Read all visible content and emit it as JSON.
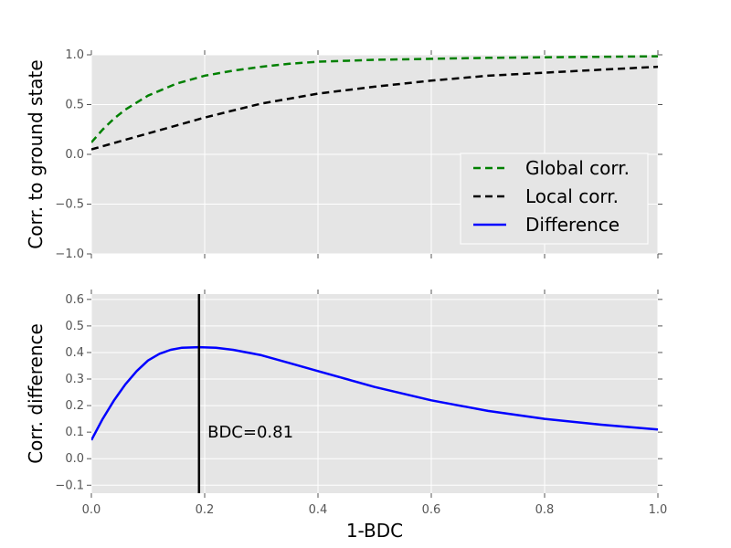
{
  "chart_data": [
    {
      "type": "line",
      "ylabel": "Corr. to ground state",
      "xlim": [
        0,
        1
      ],
      "ylim": [
        -1,
        1
      ],
      "xticks": [
        "",
        "",
        "",
        "",
        "",
        ""
      ],
      "yticks": [
        "−1.0",
        "−0.5",
        "0.0",
        "0.5",
        "1.0"
      ],
      "ytick_values": [
        -1,
        -0.5,
        0,
        0.5,
        1
      ],
      "grid": true,
      "legend_position": "lower-right",
      "series": [
        {
          "name": "Global corr.",
          "style": "dashed",
          "color": "#008000",
          "x": [
            0,
            0.02,
            0.04,
            0.06,
            0.08,
            0.1,
            0.15,
            0.2,
            0.25,
            0.3,
            0.35,
            0.4,
            0.5,
            0.6,
            0.7,
            0.8,
            0.9,
            1.0
          ],
          "y": [
            0.12,
            0.25,
            0.36,
            0.45,
            0.52,
            0.59,
            0.71,
            0.79,
            0.84,
            0.88,
            0.91,
            0.93,
            0.95,
            0.96,
            0.97,
            0.975,
            0.98,
            0.985
          ]
        },
        {
          "name": "Local corr.",
          "style": "dashed",
          "color": "#000000",
          "x": [
            0,
            0.05,
            0.1,
            0.15,
            0.2,
            0.25,
            0.3,
            0.35,
            0.4,
            0.5,
            0.6,
            0.7,
            0.8,
            0.9,
            1.0
          ],
          "y": [
            0.05,
            0.13,
            0.21,
            0.29,
            0.37,
            0.44,
            0.51,
            0.56,
            0.61,
            0.68,
            0.74,
            0.79,
            0.82,
            0.85,
            0.88
          ]
        },
        {
          "name": "Difference",
          "style": "solid",
          "color": "#0000ff",
          "x": [],
          "y": []
        }
      ]
    },
    {
      "type": "line",
      "xlabel": "1-BDC",
      "ylabel": "Corr. difference",
      "xlim": [
        0,
        1
      ],
      "ylim": [
        -0.13,
        0.62
      ],
      "xticks": [
        "0.0",
        "0.2",
        "0.4",
        "0.6",
        "0.8",
        "1.0"
      ],
      "xtick_values": [
        0,
        0.2,
        0.4,
        0.6,
        0.8,
        1.0
      ],
      "yticks": [
        "−0.1",
        "0.0",
        "0.1",
        "0.2",
        "0.3",
        "0.4",
        "0.5",
        "0.6"
      ],
      "ytick_values": [
        -0.1,
        0,
        0.1,
        0.2,
        0.3,
        0.4,
        0.5,
        0.6
      ],
      "grid": true,
      "series": [
        {
          "style": "solid",
          "color": "#0000ff",
          "x": [
            0,
            0.02,
            0.04,
            0.06,
            0.08,
            0.1,
            0.12,
            0.14,
            0.16,
            0.19,
            0.22,
            0.25,
            0.3,
            0.35,
            0.4,
            0.5,
            0.6,
            0.7,
            0.8,
            0.9,
            1.0
          ],
          "y": [
            0.07,
            0.15,
            0.22,
            0.28,
            0.33,
            0.37,
            0.395,
            0.41,
            0.418,
            0.42,
            0.418,
            0.41,
            0.39,
            0.36,
            0.33,
            0.27,
            0.22,
            0.18,
            0.15,
            0.128,
            0.11
          ]
        }
      ],
      "vline": {
        "x": 0.19,
        "color": "#000000"
      },
      "annotation": {
        "text": "BDC=0.81",
        "x": 0.205,
        "y": 0.08
      }
    }
  ]
}
